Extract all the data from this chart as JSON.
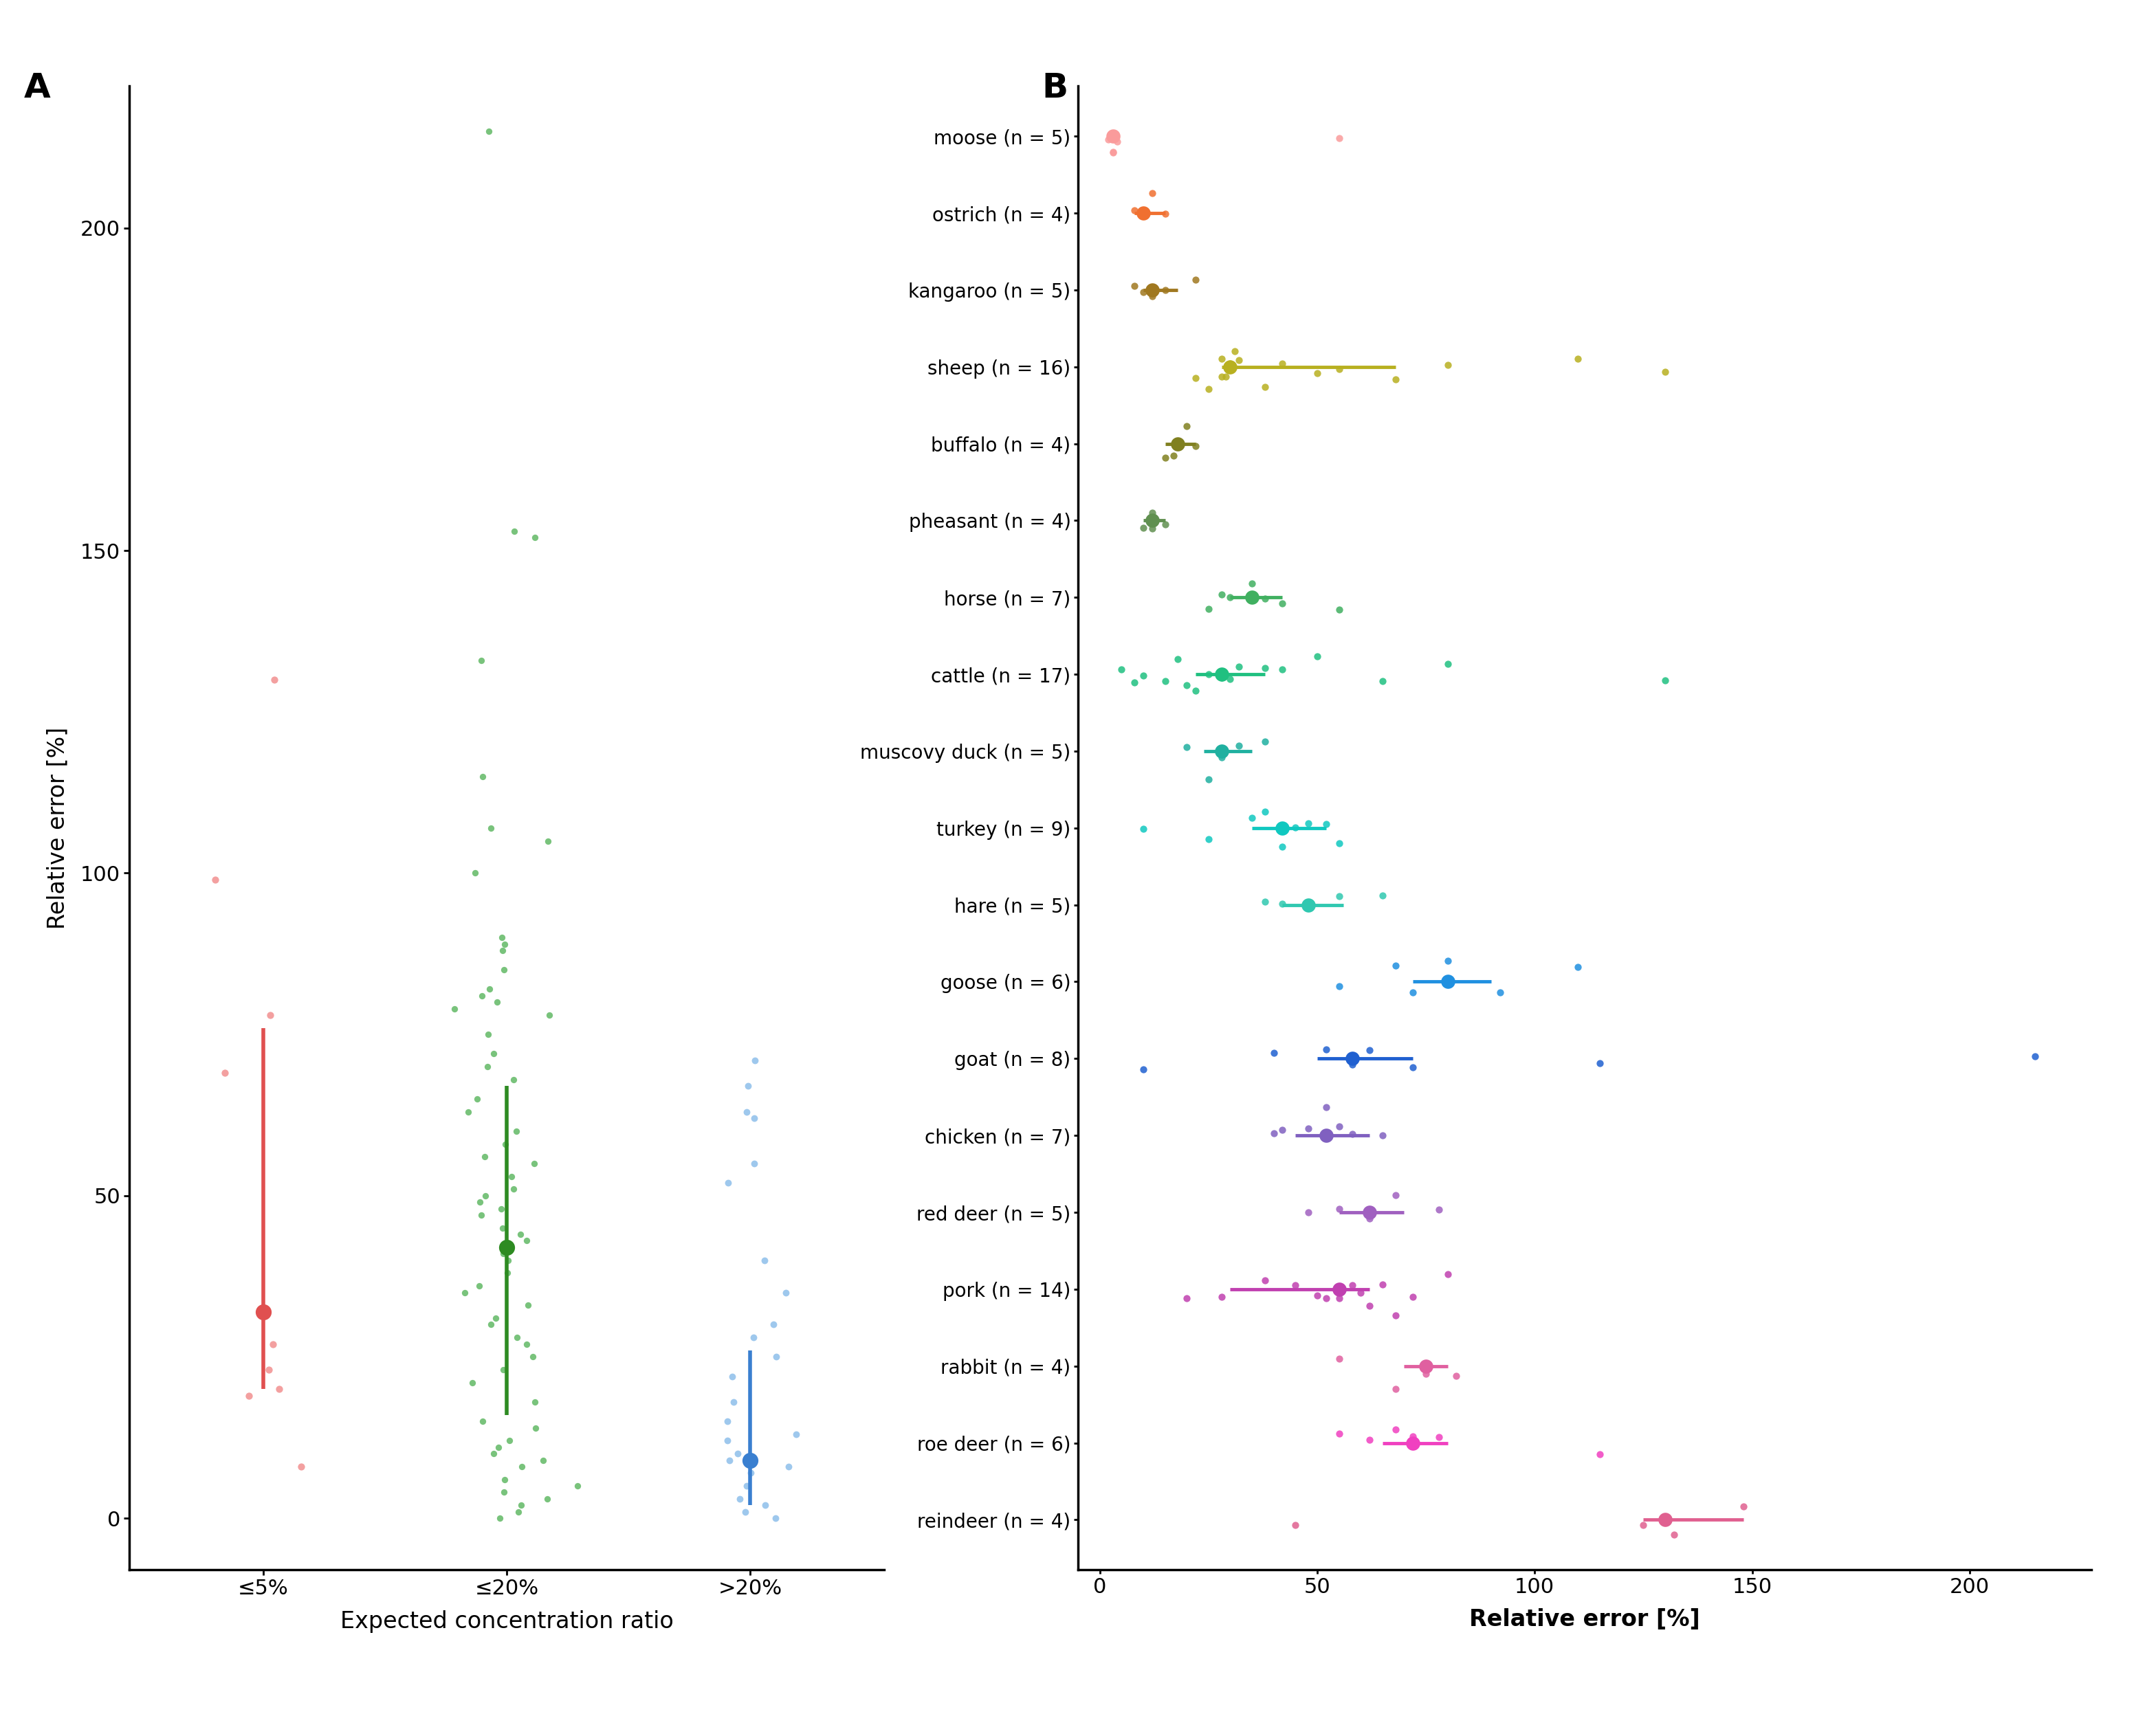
{
  "panel_A": {
    "categories": [
      "≤5%",
      "≤20%",
      ">20%"
    ],
    "colors": [
      "#F08080",
      "#4CAF50",
      "#7EB6E8"
    ],
    "mean_colors": [
      "#E05050",
      "#2E8B22",
      "#3A7FD0"
    ],
    "means": [
      32,
      42,
      9
    ],
    "q1": [
      20,
      16,
      2
    ],
    "q3": [
      76,
      67,
      26
    ],
    "points_le5": [
      23,
      20,
      19,
      27,
      130,
      99,
      78,
      69,
      8
    ],
    "points_le20": [
      215,
      153,
      152,
      133,
      115,
      107,
      105,
      100,
      90,
      89,
      88,
      85,
      82,
      81,
      80,
      79,
      78,
      75,
      72,
      70,
      68,
      65,
      63,
      60,
      58,
      56,
      55,
      53,
      51,
      50,
      49,
      48,
      47,
      45,
      44,
      43,
      42,
      41,
      40,
      38,
      36,
      35,
      33,
      31,
      30,
      28,
      27,
      25,
      23,
      21,
      18,
      15,
      12,
      10,
      8,
      5,
      3,
      1,
      0,
      2,
      4,
      6,
      9,
      11,
      14
    ],
    "points_gt20": [
      71,
      67,
      63,
      62,
      55,
      52,
      40,
      35,
      30,
      28,
      25,
      22,
      18,
      15,
      12,
      9,
      7,
      5,
      3,
      2,
      1,
      0,
      8,
      10,
      13
    ],
    "xlabel": "Expected concentration ratio",
    "ylabel": "Relative error [%]",
    "ylim": [
      -8,
      222
    ],
    "yticks": [
      0,
      50,
      100,
      150,
      200
    ]
  },
  "panel_B": {
    "species": [
      "moose (n = 5)",
      "ostrich (n = 4)",
      "kangaroo (n = 5)",
      "sheep (n = 16)",
      "buffalo (n = 4)",
      "pheasant (n = 4)",
      "horse (n = 7)",
      "cattle (n = 17)",
      "muscovy duck (n = 5)",
      "turkey (n = 9)",
      "hare (n = 5)",
      "goose (n = 6)",
      "goat (n = 8)",
      "chicken (n = 7)",
      "red deer (n = 5)",
      "pork (n = 14)",
      "rabbit (n = 4)",
      "roe deer (n = 6)",
      "reindeer (n = 4)"
    ],
    "colors": [
      "#FA9B9B",
      "#F07030",
      "#A07820",
      "#B8B020",
      "#808020",
      "#609050",
      "#40B060",
      "#20C080",
      "#20B0A0",
      "#10C8C0",
      "#30C8B0",
      "#2090E0",
      "#2060D0",
      "#8060C0",
      "#A060C0",
      "#C040B0",
      "#E060A0",
      "#F040C0",
      "#E06090"
    ],
    "medians": [
      3,
      10,
      12,
      30,
      18,
      12,
      35,
      28,
      28,
      42,
      48,
      80,
      58,
      52,
      62,
      55,
      75,
      72,
      130
    ],
    "q1_vals": [
      2,
      8,
      10,
      28,
      15,
      10,
      30,
      22,
      24,
      35,
      42,
      72,
      50,
      45,
      55,
      30,
      70,
      65,
      125
    ],
    "q3_vals": [
      4,
      15,
      18,
      68,
      22,
      15,
      42,
      38,
      35,
      52,
      56,
      90,
      72,
      62,
      70,
      62,
      80,
      80,
      148
    ],
    "all_points": {
      "moose (n = 5)": [
        2,
        3,
        3,
        4,
        55
      ],
      "ostrich (n = 4)": [
        8,
        10,
        12,
        15
      ],
      "kangaroo (n = 5)": [
        8,
        10,
        12,
        15,
        22
      ],
      "sheep (n = 16)": [
        22,
        25,
        28,
        28,
        29,
        30,
        31,
        32,
        38,
        42,
        50,
        55,
        68,
        80,
        110,
        130
      ],
      "buffalo (n = 4)": [
        15,
        17,
        20,
        22
      ],
      "pheasant (n = 4)": [
        10,
        12,
        12,
        15
      ],
      "horse (n = 7)": [
        25,
        28,
        30,
        35,
        38,
        42,
        55
      ],
      "cattle (n = 17)": [
        5,
        8,
        10,
        15,
        18,
        20,
        22,
        25,
        28,
        30,
        32,
        38,
        42,
        50,
        65,
        80,
        130
      ],
      "muscovy duck (n = 5)": [
        20,
        25,
        28,
        32,
        38
      ],
      "turkey (n = 9)": [
        10,
        25,
        35,
        38,
        42,
        45,
        48,
        52,
        55
      ],
      "hare (n = 5)": [
        38,
        42,
        48,
        55,
        65
      ],
      "goose (n = 6)": [
        55,
        68,
        72,
        80,
        92,
        110
      ],
      "goat (n = 8)": [
        10,
        40,
        52,
        58,
        62,
        72,
        115,
        215
      ],
      "chicken (n = 7)": [
        40,
        42,
        48,
        52,
        55,
        58,
        65
      ],
      "red deer (n = 5)": [
        48,
        55,
        62,
        68,
        78
      ],
      "pork (n = 14)": [
        20,
        28,
        38,
        45,
        50,
        52,
        55,
        58,
        60,
        62,
        65,
        68,
        72,
        80
      ],
      "rabbit (n = 4)": [
        55,
        68,
        75,
        82
      ],
      "roe deer (n = 6)": [
        55,
        62,
        68,
        72,
        78,
        115
      ],
      "reindeer (n = 4)": [
        45,
        125,
        132,
        148
      ]
    },
    "xlabel": "Relative error [%]",
    "xlim": [
      -5,
      228
    ],
    "xticks": [
      0,
      50,
      100,
      150,
      200
    ]
  }
}
